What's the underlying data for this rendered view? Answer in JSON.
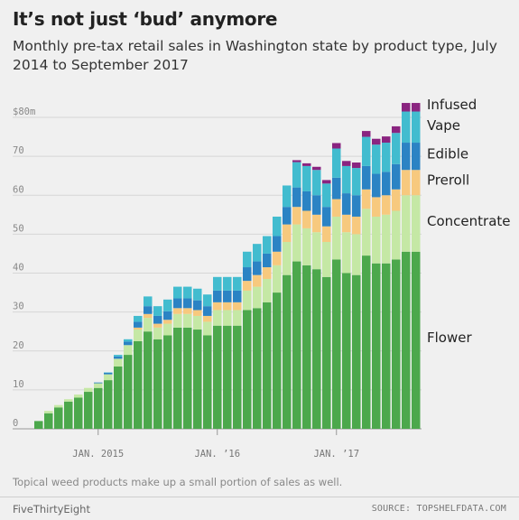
{
  "title": "It’s not just ‘bud’ anymore",
  "subtitle": "Monthly pre-tax retail sales in Washington state by product type, July 2014 to September 2017",
  "note": "Topical weed products make up a small portion of sales as well.",
  "brand": "FiveThirtyEight",
  "source": "SOURCE: TOPSHELFDATA.COM",
  "chart_data": {
    "type": "bar",
    "stacked": true,
    "title": "It’s not just ‘bud’ anymore",
    "ylim": [
      0,
      80
    ],
    "yticks": [
      {
        "value": 0,
        "label": "0"
      },
      {
        "value": 10,
        "label": "10"
      },
      {
        "value": 20,
        "label": "20"
      },
      {
        "value": 30,
        "label": "30"
      },
      {
        "value": 40,
        "label": "40"
      },
      {
        "value": 50,
        "label": "50"
      },
      {
        "value": 60,
        "label": "60"
      },
      {
        "value": 70,
        "label": "70"
      },
      {
        "value": 80,
        "label": "$80m"
      }
    ],
    "xticks": [
      {
        "month": "2015-01",
        "label": "JAN. 2015"
      },
      {
        "month": "2016-01",
        "label": "JAN. ’16"
      },
      {
        "month": "2017-01",
        "label": "JAN. ’17"
      }
    ],
    "categories": [
      "2014-07",
      "2014-08",
      "2014-09",
      "2014-10",
      "2014-11",
      "2014-12",
      "2015-01",
      "2015-02",
      "2015-03",
      "2015-04",
      "2015-05",
      "2015-06",
      "2015-07",
      "2015-08",
      "2015-09",
      "2015-10",
      "2015-11",
      "2015-12",
      "2016-01",
      "2016-02",
      "2016-03",
      "2016-04",
      "2016-05",
      "2016-06",
      "2016-07",
      "2016-08",
      "2016-09",
      "2016-10",
      "2016-11",
      "2016-12",
      "2017-01",
      "2017-02",
      "2017-03",
      "2017-04",
      "2017-05",
      "2017-06",
      "2017-07",
      "2017-08",
      "2017-09"
    ],
    "series": [
      {
        "name": "Flower",
        "color": "#4ca84c",
        "values": [
          2,
          4,
          5.5,
          7,
          8,
          9.5,
          10.5,
          12.5,
          16,
          19,
          22.5,
          25,
          23,
          24,
          26,
          26,
          25.5,
          24,
          26.5,
          26.5,
          26.5,
          30.5,
          31,
          32.5,
          35,
          39.5,
          43,
          42,
          41,
          39,
          43.5,
          40,
          39.5,
          44.5,
          42.5,
          42.5,
          43.5,
          45.5,
          45.5
        ]
      },
      {
        "name": "Concentrate",
        "color": "#c5e8a5",
        "values": [
          0,
          0.6,
          0.6,
          0.6,
          0.8,
          1,
          1.2,
          1.5,
          2,
          2.5,
          3,
          3.5,
          3,
          3,
          3.5,
          3.5,
          3.5,
          3.5,
          4,
          4,
          4,
          5,
          5.5,
          6,
          7,
          8.5,
          9.5,
          9.5,
          9.5,
          9,
          11,
          10.5,
          10.5,
          12,
          12,
          12.5,
          12.5,
          14.5,
          14.5
        ]
      },
      {
        "name": "Preroll",
        "color": "#f7c97e",
        "values": [
          0,
          0,
          0,
          0,
          0,
          0,
          0,
          0,
          0,
          0,
          0.5,
          1,
          1,
          1,
          1.5,
          1.5,
          1.5,
          1.5,
          2,
          2,
          2,
          2.5,
          3,
          3,
          3.5,
          4.5,
          4.5,
          4.5,
          4.5,
          4,
          4.5,
          4.5,
          4.5,
          5,
          5,
          5,
          5.5,
          6.5,
          6.5
        ]
      },
      {
        "name": "Edible",
        "color": "#2b83c4",
        "values": [
          0,
          0,
          0,
          0,
          0,
          0,
          0.2,
          0.4,
          0.6,
          0.9,
          1.5,
          2,
          2,
          2.2,
          2.5,
          2.5,
          2.5,
          2.5,
          3,
          3,
          3,
          3.5,
          3.5,
          3.5,
          4,
          4.5,
          5,
          5,
          5,
          5,
          5.5,
          5.5,
          5.5,
          6,
          6,
          6,
          6.5,
          7,
          7
        ]
      },
      {
        "name": "Vape",
        "color": "#42bccf",
        "values": [
          0,
          0,
          0,
          0,
          0,
          0,
          0,
          0.1,
          0.4,
          0.6,
          1.5,
          2.5,
          2.5,
          3,
          3,
          3,
          3,
          3,
          3.5,
          3.5,
          3.5,
          4,
          4.5,
          4.5,
          5,
          5.5,
          6.5,
          6.5,
          6.5,
          6,
          7.5,
          7,
          7,
          7.5,
          7.5,
          7.5,
          8,
          8,
          8
        ]
      },
      {
        "name": "Infused",
        "color": "#8a2480",
        "values": [
          0,
          0,
          0,
          0,
          0,
          0,
          0,
          0,
          0,
          0,
          0,
          0,
          0,
          0,
          0,
          0,
          0,
          0,
          0,
          0,
          0,
          0,
          0,
          0,
          0,
          0,
          0.5,
          0.7,
          0.8,
          0.9,
          1.4,
          1.3,
          1.4,
          1.5,
          1.5,
          1.6,
          1.7,
          2.2,
          2.2
        ]
      }
    ],
    "series_labels": [
      "Infused",
      "Vape",
      "Edible",
      "Preroll",
      "Concentrate",
      "Flower"
    ]
  }
}
